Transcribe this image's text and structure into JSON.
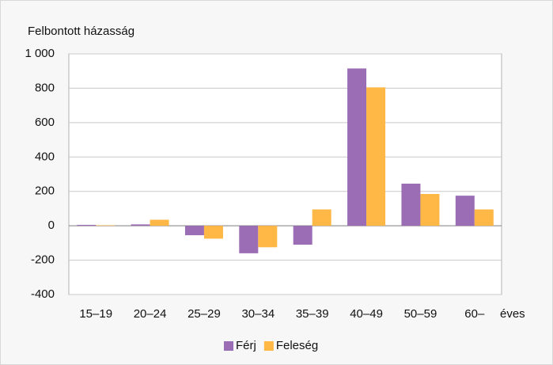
{
  "chart_data": {
    "type": "bar",
    "y_label": "Felbontott házasság",
    "x_label": "éves",
    "categories": [
      "15–19",
      "20–24",
      "25–29",
      "30–34",
      "35–39",
      "40–49",
      "50–59",
      "60–"
    ],
    "series": [
      {
        "name": "Férj",
        "color": "#9b6db5",
        "values": [
          5,
          8,
          -55,
          -160,
          -110,
          915,
          245,
          175
        ]
      },
      {
        "name": "Feleség",
        "color": "#ffb845",
        "values": [
          3,
          35,
          -75,
          -125,
          95,
          805,
          185,
          95
        ]
      }
    ],
    "ylim": [
      -400,
      1000
    ],
    "yticks": [
      -400,
      -200,
      0,
      200,
      400,
      600,
      800,
      {
        "value": 1000,
        "label": "1 000"
      }
    ],
    "grid": true,
    "legend": "bottom"
  }
}
